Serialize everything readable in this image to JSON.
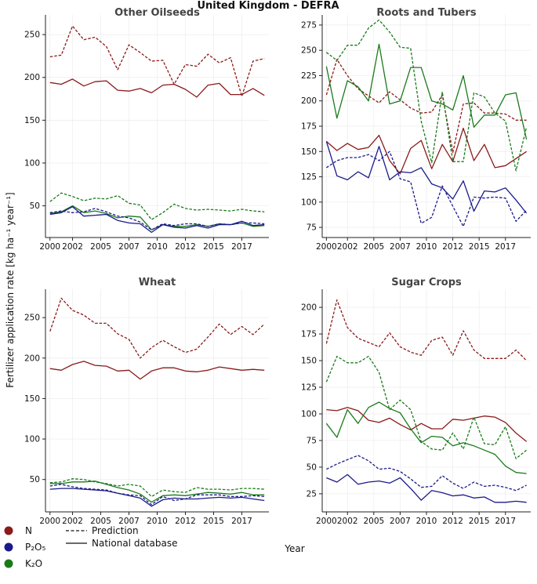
{
  "title": "United Kingdom - DEFRA",
  "xlabel": "Year",
  "ylabel": "Fertilizer application rate [kg ha⁻¹ year⁻¹]",
  "legend": {
    "nutrients": [
      {
        "label": "N",
        "color": "#8b1a1a"
      },
      {
        "label": "P₂O₅",
        "color": "#1a1a8b"
      },
      {
        "label": "K₂O",
        "color": "#1a7a1a"
      }
    ],
    "styles": [
      {
        "label": "Prediction",
        "dash": "dashed"
      },
      {
        "label": "National database",
        "dash": "solid"
      }
    ]
  },
  "chart_data": [
    {
      "type": "line",
      "title": "Other Oilseeds",
      "x": [
        2000,
        2001,
        2002,
        2003,
        2004,
        2005,
        2006,
        2007,
        2008,
        2009,
        2010,
        2011,
        2012,
        2013,
        2014,
        2015,
        2016,
        2017,
        2018,
        2019
      ],
      "xticks": [
        "2000",
        "2002",
        "2005",
        "2007",
        "2010",
        "2012",
        "2015",
        "2017"
      ],
      "xtick_values": [
        2000,
        2002,
        2004.5,
        2007,
        2009.5,
        2012,
        2014.5,
        2017
      ],
      "ylim": [
        13,
        273
      ],
      "yticks": [
        50,
        100,
        150,
        200,
        250
      ],
      "series": [
        {
          "name": "N Prediction",
          "nutrient": "N",
          "style": "dashed",
          "color": "#8b1a1a",
          "values": [
            224,
            226,
            260,
            244,
            247,
            236,
            209,
            238,
            229,
            219,
            220,
            192,
            215,
            213,
            227,
            217,
            223,
            178,
            219,
            222
          ]
        },
        {
          "name": "N National database",
          "nutrient": "N",
          "style": "solid",
          "color": "#8b1a1a",
          "values": [
            194,
            192,
            198,
            190,
            195,
            196,
            185,
            184,
            187,
            182,
            191,
            192,
            186,
            177,
            191,
            193,
            180,
            180,
            187,
            179
          ]
        },
        {
          "name": "K2O Prediction",
          "nutrient": "K2O",
          "style": "dashed",
          "color": "#1a7a1a",
          "values": [
            55,
            65,
            61,
            56,
            59,
            58,
            62,
            53,
            51,
            34,
            42,
            52,
            47,
            45,
            46,
            45,
            44,
            46,
            44,
            43
          ]
        },
        {
          "name": "K2O National database",
          "nutrient": "K2O",
          "style": "solid",
          "color": "#1a7a1a",
          "values": [
            41,
            43,
            50,
            42,
            44,
            41,
            36,
            38,
            37,
            22,
            28,
            26,
            26,
            28,
            26,
            29,
            28,
            30,
            26,
            27
          ]
        },
        {
          "name": "P2O5 Prediction",
          "nutrient": "P2O5",
          "style": "dashed",
          "color": "#1a1a8b",
          "values": [
            42,
            44,
            42,
            43,
            47,
            43,
            38,
            36,
            31,
            22,
            29,
            27,
            29,
            29,
            26,
            29,
            28,
            30,
            30,
            29
          ]
        },
        {
          "name": "P2O5 National database",
          "nutrient": "P2O5",
          "style": "solid",
          "color": "#1a1a8b",
          "values": [
            40,
            42,
            49,
            38,
            39,
            40,
            33,
            30,
            29,
            19,
            28,
            25,
            24,
            27,
            24,
            28,
            28,
            32,
            27,
            28
          ]
        }
      ]
    },
    {
      "type": "line",
      "title": "Roots and Tubers",
      "x": [
        2000,
        2001,
        2002,
        2003,
        2004,
        2005,
        2006,
        2007,
        2008,
        2009,
        2010,
        2011,
        2012,
        2013,
        2014,
        2015,
        2016,
        2017,
        2018,
        2019
      ],
      "xticks": [
        "2000",
        "2002",
        "2005",
        "2007",
        "2010",
        "2012",
        "2015",
        "2017"
      ],
      "xtick_values": [
        2000,
        2002,
        2004.5,
        2007,
        2009.5,
        2012,
        2014.5,
        2017
      ],
      "ylim": [
        65,
        285
      ],
      "yticks": [
        75,
        100,
        125,
        150,
        175,
        200,
        225,
        250,
        275
      ],
      "series": [
        {
          "name": "N Prediction",
          "nutrient": "N",
          "style": "dashed",
          "color": "#8b1a1a",
          "values": [
            206,
            241,
            225,
            212,
            205,
            198,
            209,
            201,
            193,
            188,
            189,
            206,
            149,
            197,
            198,
            188,
            188,
            187,
            181,
            181
          ]
        },
        {
          "name": "N National database",
          "nutrient": "N",
          "style": "solid",
          "color": "#8b1a1a",
          "values": [
            160,
            151,
            158,
            152,
            154,
            166,
            141,
            128,
            153,
            161,
            133,
            157,
            140,
            173,
            141,
            157,
            134,
            136,
            143,
            150
          ]
        },
        {
          "name": "K2O Prediction",
          "nutrient": "K2O",
          "style": "dashed",
          "color": "#1a7a1a",
          "values": [
            248,
            240,
            255,
            255,
            272,
            280,
            268,
            253,
            252,
            180,
            139,
            209,
            140,
            140,
            208,
            204,
            188,
            180,
            131,
            174
          ]
        },
        {
          "name": "K2O National database",
          "nutrient": "K2O",
          "style": "solid",
          "color": "#1a7a1a",
          "values": [
            234,
            183,
            220,
            214,
            200,
            256,
            197,
            200,
            233,
            233,
            200,
            197,
            191,
            225,
            174,
            186,
            186,
            206,
            208,
            162
          ]
        },
        {
          "name": "P2O5 Prediction",
          "nutrient": "P2O5",
          "style": "dashed",
          "color": "#1a1a8b",
          "values": [
            134,
            141,
            144,
            144,
            147,
            141,
            150,
            123,
            120,
            79,
            85,
            116,
            96,
            76,
            105,
            104,
            105,
            104,
            81,
            92
          ]
        },
        {
          "name": "P2O5 National database",
          "nutrient": "P2O5",
          "style": "solid",
          "color": "#1a1a8b",
          "values": [
            160,
            126,
            122,
            130,
            124,
            155,
            122,
            130,
            129,
            134,
            118,
            114,
            103,
            121,
            91,
            111,
            110,
            114,
            102,
            89
          ]
        }
      ]
    },
    {
      "type": "line",
      "title": "Wheat",
      "x": [
        2000,
        2001,
        2002,
        2003,
        2004,
        2005,
        2006,
        2007,
        2008,
        2009,
        2010,
        2011,
        2012,
        2013,
        2014,
        2015,
        2016,
        2017,
        2018,
        2019
      ],
      "xticks": [
        "2000",
        "2002",
        "2005",
        "2007",
        "2010",
        "2012",
        "2015",
        "2017"
      ],
      "xtick_values": [
        2000,
        2002,
        2004.5,
        2007,
        2009.5,
        2012,
        2014.5,
        2017
      ],
      "ylim": [
        10,
        285
      ],
      "yticks": [
        50,
        100,
        150,
        200,
        250
      ],
      "series": [
        {
          "name": "N Prediction",
          "nutrient": "N",
          "style": "dashed",
          "color": "#8b1a1a",
          "values": [
            233,
            274,
            259,
            253,
            243,
            243,
            230,
            223,
            200,
            213,
            222,
            214,
            207,
            211,
            226,
            242,
            229,
            239,
            229,
            242
          ]
        },
        {
          "name": "N National database",
          "nutrient": "N",
          "style": "solid",
          "color": "#8b1a1a",
          "values": [
            187,
            185,
            192,
            196,
            191,
            190,
            184,
            185,
            174,
            184,
            188,
            188,
            184,
            183,
            185,
            189,
            187,
            185,
            186,
            185
          ]
        },
        {
          "name": "K2O Prediction",
          "nutrient": "K2O",
          "style": "dashed",
          "color": "#1a7a1a",
          "values": [
            46,
            47,
            51,
            50,
            47,
            45,
            42,
            44,
            42,
            29,
            37,
            35,
            34,
            40,
            38,
            38,
            37,
            39,
            39,
            38
          ]
        },
        {
          "name": "K2O National database",
          "nutrient": "K2O",
          "style": "solid",
          "color": "#1a7a1a",
          "values": [
            45,
            45,
            47,
            47,
            48,
            44,
            40,
            37,
            32,
            22,
            30,
            31,
            30,
            32,
            34,
            33,
            32,
            34,
            31,
            31
          ]
        },
        {
          "name": "P2O5 Prediction",
          "nutrient": "P2O5",
          "style": "dashed",
          "color": "#1a1a8b",
          "values": [
            42,
            44,
            41,
            39,
            38,
            37,
            33,
            31,
            30,
            19,
            29,
            24,
            26,
            31,
            31,
            31,
            29,
            29,
            30,
            29
          ]
        },
        {
          "name": "P2O5 National database",
          "nutrient": "P2O5",
          "style": "solid",
          "color": "#1a1a8b",
          "values": [
            38,
            39,
            39,
            38,
            37,
            36,
            33,
            30,
            27,
            17,
            25,
            27,
            26,
            26,
            27,
            28,
            27,
            28,
            26,
            24
          ]
        }
      ]
    },
    {
      "type": "line",
      "title": "Sugar Crops",
      "x": [
        2000,
        2001,
        2002,
        2003,
        2004,
        2005,
        2006,
        2007,
        2008,
        2009,
        2010,
        2011,
        2012,
        2013,
        2014,
        2015,
        2016,
        2017,
        2018,
        2019
      ],
      "xticks": [
        "2000",
        "2002",
        "2005",
        "2007",
        "2010",
        "2012",
        "2015",
        "2017"
      ],
      "xtick_values": [
        2000,
        2002,
        2004.5,
        2007,
        2009.5,
        2012,
        2014.5,
        2017
      ],
      "ylim": [
        8,
        217
      ],
      "yticks": [
        25,
        50,
        75,
        100,
        125,
        150,
        175,
        200
      ],
      "series": [
        {
          "name": "N Prediction",
          "nutrient": "N",
          "style": "dashed",
          "color": "#8b1a1a",
          "values": [
            166,
            207,
            181,
            171,
            167,
            163,
            176,
            163,
            158,
            155,
            169,
            172,
            155,
            178,
            160,
            152,
            152,
            152,
            160,
            150
          ]
        },
        {
          "name": "N National database",
          "nutrient": "N",
          "style": "solid",
          "color": "#8b1a1a",
          "values": [
            104,
            103,
            106,
            103,
            94,
            92,
            96,
            90,
            85,
            91,
            86,
            86,
            95,
            94,
            96,
            98,
            97,
            92,
            82,
            74
          ]
        },
        {
          "name": "K2O Prediction",
          "nutrient": "K2O",
          "style": "dashed",
          "color": "#1a7a1a",
          "values": [
            130,
            154,
            148,
            148,
            154,
            139,
            104,
            113,
            104,
            74,
            67,
            66,
            82,
            67,
            97,
            72,
            71,
            88,
            58,
            66
          ]
        },
        {
          "name": "K2O National database",
          "nutrient": "K2O",
          "style": "solid",
          "color": "#1a7a1a",
          "values": [
            91,
            78,
            104,
            91,
            106,
            111,
            105,
            101,
            86,
            73,
            79,
            78,
            70,
            73,
            70,
            66,
            62,
            51,
            45,
            44
          ]
        },
        {
          "name": "P2O5 Prediction",
          "nutrient": "P2O5",
          "style": "dashed",
          "color": "#1a1a8b",
          "values": [
            48,
            53,
            57,
            61,
            56,
            48,
            49,
            46,
            39,
            31,
            32,
            42,
            35,
            30,
            36,
            32,
            33,
            31,
            28,
            33
          ]
        },
        {
          "name": "P2O5 National database",
          "nutrient": "P2O5",
          "style": "solid",
          "color": "#1a1a8b",
          "values": [
            40,
            36,
            43,
            34,
            36,
            37,
            35,
            40,
            30,
            19,
            28,
            26,
            23,
            24,
            21,
            22,
            17,
            17,
            18,
            17
          ]
        }
      ]
    }
  ]
}
